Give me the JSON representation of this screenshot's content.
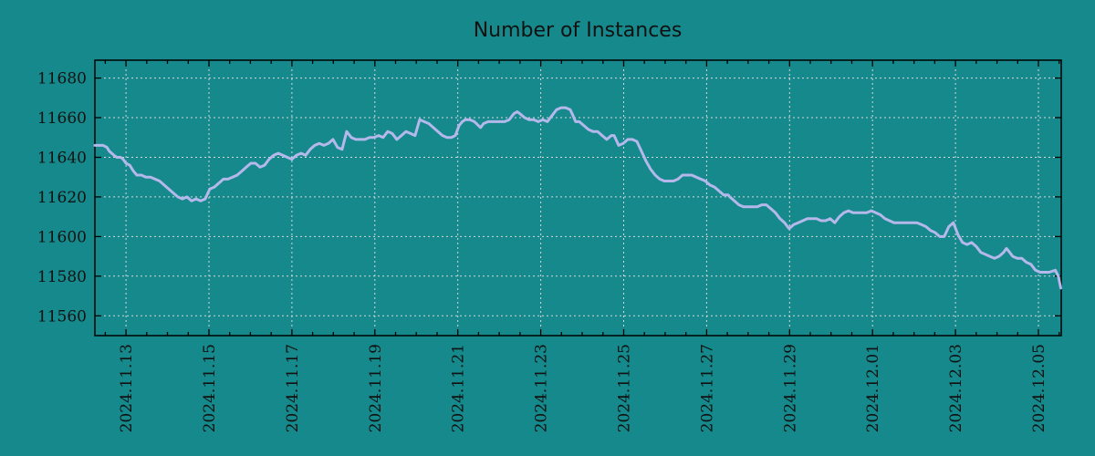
{
  "page": {
    "title": "Number of Instances"
  },
  "colors": {
    "background": "#15898b",
    "line": "#b4b8ea",
    "grid": "#d8d8d8",
    "axis": "#000000",
    "text": "#111111"
  },
  "chart_data": {
    "type": "line",
    "title": "Number of Instances",
    "grid": "dashed",
    "legend": "none",
    "x_axis": {
      "day0_label": "2024.11.13",
      "tick_labels": [
        "2024.11.13",
        "2024.11.15",
        "2024.11.17",
        "2024.11.19",
        "2024.11.21",
        "2024.11.23",
        "2024.11.25",
        "2024.11.27",
        "2024.11.29",
        "2024.12.01",
        "2024.12.03",
        "2024.12.05"
      ],
      "tick_positions_days": [
        0,
        2,
        4,
        6,
        8,
        10,
        12,
        14,
        16,
        18,
        20,
        22
      ],
      "minor_tick_interval_days": 0.5,
      "range_days": [
        -0.75,
        22.55
      ],
      "label_rotation_deg": 90
    },
    "y_axis": {
      "tick_values": [
        11560,
        11580,
        11600,
        11620,
        11640,
        11660,
        11680
      ],
      "range": [
        11550,
        11689
      ]
    },
    "series": [
      {
        "name": "Number of Instances",
        "points": [
          [
            -0.75,
            11646
          ],
          [
            -0.62,
            11646
          ],
          [
            -0.55,
            11646
          ],
          [
            -0.46,
            11645
          ],
          [
            -0.4,
            11643
          ],
          [
            -0.29,
            11641
          ],
          [
            -0.22,
            11640
          ],
          [
            -0.13,
            11640
          ],
          [
            -0.07,
            11639
          ],
          [
            0,
            11637
          ],
          [
            0.09,
            11636
          ],
          [
            0.18,
            11633
          ],
          [
            0.26,
            11631
          ],
          [
            0.37,
            11631
          ],
          [
            0.48,
            11630
          ],
          [
            0.59,
            11630
          ],
          [
            0.7,
            11629
          ],
          [
            0.81,
            11628
          ],
          [
            0.92,
            11626
          ],
          [
            1.03,
            11624
          ],
          [
            1.14,
            11622
          ],
          [
            1.25,
            11620
          ],
          [
            1.36,
            11619
          ],
          [
            1.47,
            11620
          ],
          [
            1.58,
            11618
          ],
          [
            1.69,
            11619
          ],
          [
            1.8,
            11618
          ],
          [
            1.91,
            11619
          ],
          [
            2.02,
            11624
          ],
          [
            2.13,
            11625
          ],
          [
            2.24,
            11627
          ],
          [
            2.35,
            11629
          ],
          [
            2.46,
            11629
          ],
          [
            2.57,
            11630
          ],
          [
            2.68,
            11631
          ],
          [
            2.79,
            11633
          ],
          [
            2.9,
            11635
          ],
          [
            3.01,
            11637
          ],
          [
            3.12,
            11637
          ],
          [
            3.23,
            11635
          ],
          [
            3.34,
            11636
          ],
          [
            3.45,
            11639
          ],
          [
            3.56,
            11641
          ],
          [
            3.67,
            11642
          ],
          [
            3.78,
            11641
          ],
          [
            3.89,
            11640
          ],
          [
            4,
            11639
          ],
          [
            4.11,
            11641
          ],
          [
            4.22,
            11642
          ],
          [
            4.33,
            11641
          ],
          [
            4.44,
            11644
          ],
          [
            4.55,
            11646
          ],
          [
            4.66,
            11647
          ],
          [
            4.77,
            11646
          ],
          [
            4.88,
            11647
          ],
          [
            4.99,
            11649
          ],
          [
            5.1,
            11645
          ],
          [
            5.21,
            11644
          ],
          [
            5.32,
            11653
          ],
          [
            5.43,
            11650
          ],
          [
            5.54,
            11649
          ],
          [
            5.65,
            11649
          ],
          [
            5.76,
            11649
          ],
          [
            5.87,
            11650
          ],
          [
            5.98,
            11650
          ],
          [
            6.09,
            11651
          ],
          [
            6.2,
            11650
          ],
          [
            6.31,
            11653
          ],
          [
            6.42,
            11652
          ],
          [
            6.53,
            11649
          ],
          [
            6.64,
            11651
          ],
          [
            6.75,
            11653
          ],
          [
            6.86,
            11652
          ],
          [
            6.97,
            11651
          ],
          [
            7.08,
            11659
          ],
          [
            7.19,
            11658
          ],
          [
            7.3,
            11657
          ],
          [
            7.41,
            11655
          ],
          [
            7.52,
            11653
          ],
          [
            7.63,
            11651
          ],
          [
            7.74,
            11650
          ],
          [
            7.85,
            11650
          ],
          [
            7.94,
            11651
          ],
          [
            8.03,
            11656
          ],
          [
            8.11,
            11658
          ],
          [
            8.18,
            11659
          ],
          [
            8.29,
            11659
          ],
          [
            8.4,
            11658
          ],
          [
            8.55,
            11655
          ],
          [
            8.62,
            11657
          ],
          [
            8.73,
            11658
          ],
          [
            8.84,
            11658
          ],
          [
            8.95,
            11658
          ],
          [
            9.06,
            11658
          ],
          [
            9.13,
            11658
          ],
          [
            9.24,
            11659
          ],
          [
            9.35,
            11662
          ],
          [
            9.43,
            11663
          ],
          [
            9.5,
            11662
          ],
          [
            9.61,
            11660
          ],
          [
            9.72,
            11659
          ],
          [
            9.83,
            11659
          ],
          [
            9.94,
            11658
          ],
          [
            10.05,
            11659
          ],
          [
            10.16,
            11658
          ],
          [
            10.27,
            11661
          ],
          [
            10.38,
            11664
          ],
          [
            10.49,
            11665
          ],
          [
            10.6,
            11665
          ],
          [
            10.71,
            11664
          ],
          [
            10.78,
            11661
          ],
          [
            10.84,
            11658
          ],
          [
            10.93,
            11658
          ],
          [
            11.04,
            11656
          ],
          [
            11.15,
            11654
          ],
          [
            11.26,
            11653
          ],
          [
            11.37,
            11653
          ],
          [
            11.48,
            11651
          ],
          [
            11.59,
            11649
          ],
          [
            11.7,
            11651
          ],
          [
            11.77,
            11651
          ],
          [
            11.88,
            11646
          ],
          [
            11.99,
            11647
          ],
          [
            12.1,
            11649
          ],
          [
            12.21,
            11649
          ],
          [
            12.32,
            11648
          ],
          [
            12.43,
            11643
          ],
          [
            12.54,
            11638
          ],
          [
            12.65,
            11634
          ],
          [
            12.76,
            11631
          ],
          [
            12.87,
            11629
          ],
          [
            12.98,
            11628
          ],
          [
            13.09,
            11628
          ],
          [
            13.2,
            11628
          ],
          [
            13.31,
            11629
          ],
          [
            13.42,
            11631
          ],
          [
            13.53,
            11631
          ],
          [
            13.64,
            11631
          ],
          [
            13.75,
            11630
          ],
          [
            13.86,
            11629
          ],
          [
            13.97,
            11628
          ],
          [
            14.08,
            11626
          ],
          [
            14.19,
            11625
          ],
          [
            14.3,
            11623
          ],
          [
            14.41,
            11621
          ],
          [
            14.52,
            11621
          ],
          [
            14.56,
            11620
          ],
          [
            14.67,
            11618
          ],
          [
            14.78,
            11616
          ],
          [
            14.89,
            11615
          ],
          [
            15,
            11615
          ],
          [
            15.11,
            11615
          ],
          [
            15.22,
            11615
          ],
          [
            15.33,
            11616
          ],
          [
            15.44,
            11616
          ],
          [
            15.55,
            11614
          ],
          [
            15.66,
            11612
          ],
          [
            15.77,
            11609
          ],
          [
            15.88,
            11607
          ],
          [
            15.95,
            11605
          ],
          [
            15.99,
            11604
          ],
          [
            16.1,
            11606
          ],
          [
            16.21,
            11607
          ],
          [
            16.32,
            11608
          ],
          [
            16.43,
            11609
          ],
          [
            16.54,
            11609
          ],
          [
            16.65,
            11609
          ],
          [
            16.76,
            11608
          ],
          [
            16.87,
            11608
          ],
          [
            16.98,
            11609
          ],
          [
            17.09,
            11607
          ],
          [
            17.2,
            11610
          ],
          [
            17.31,
            11612
          ],
          [
            17.42,
            11613
          ],
          [
            17.53,
            11612
          ],
          [
            17.64,
            11612
          ],
          [
            17.75,
            11612
          ],
          [
            17.86,
            11612
          ],
          [
            17.97,
            11613
          ],
          [
            18.08,
            11612
          ],
          [
            18.19,
            11611
          ],
          [
            18.3,
            11609
          ],
          [
            18.41,
            11608
          ],
          [
            18.52,
            11607
          ],
          [
            18.63,
            11607
          ],
          [
            18.74,
            11607
          ],
          [
            18.85,
            11607
          ],
          [
            18.96,
            11607
          ],
          [
            19.07,
            11607
          ],
          [
            19.18,
            11606
          ],
          [
            19.29,
            11605
          ],
          [
            19.4,
            11603
          ],
          [
            19.51,
            11602
          ],
          [
            19.62,
            11600
          ],
          [
            19.73,
            11600
          ],
          [
            19.84,
            11605
          ],
          [
            19.95,
            11607
          ],
          [
            20.06,
            11601
          ],
          [
            20.17,
            11597
          ],
          [
            20.28,
            11596
          ],
          [
            20.39,
            11597
          ],
          [
            20.5,
            11595
          ],
          [
            20.61,
            11592
          ],
          [
            20.72,
            11591
          ],
          [
            20.83,
            11590
          ],
          [
            20.94,
            11589
          ],
          [
            21.05,
            11590
          ],
          [
            21.16,
            11592
          ],
          [
            21.23,
            11594
          ],
          [
            21.27,
            11593
          ],
          [
            21.38,
            11590
          ],
          [
            21.49,
            11589
          ],
          [
            21.6,
            11589
          ],
          [
            21.71,
            11587
          ],
          [
            21.82,
            11586
          ],
          [
            21.93,
            11583
          ],
          [
            22.04,
            11582
          ],
          [
            22.15,
            11582
          ],
          [
            22.26,
            11582
          ],
          [
            22.41,
            11583
          ],
          [
            22.48,
            11580
          ],
          [
            22.52,
            11576
          ],
          [
            22.54,
            11574
          ]
        ]
      }
    ]
  }
}
